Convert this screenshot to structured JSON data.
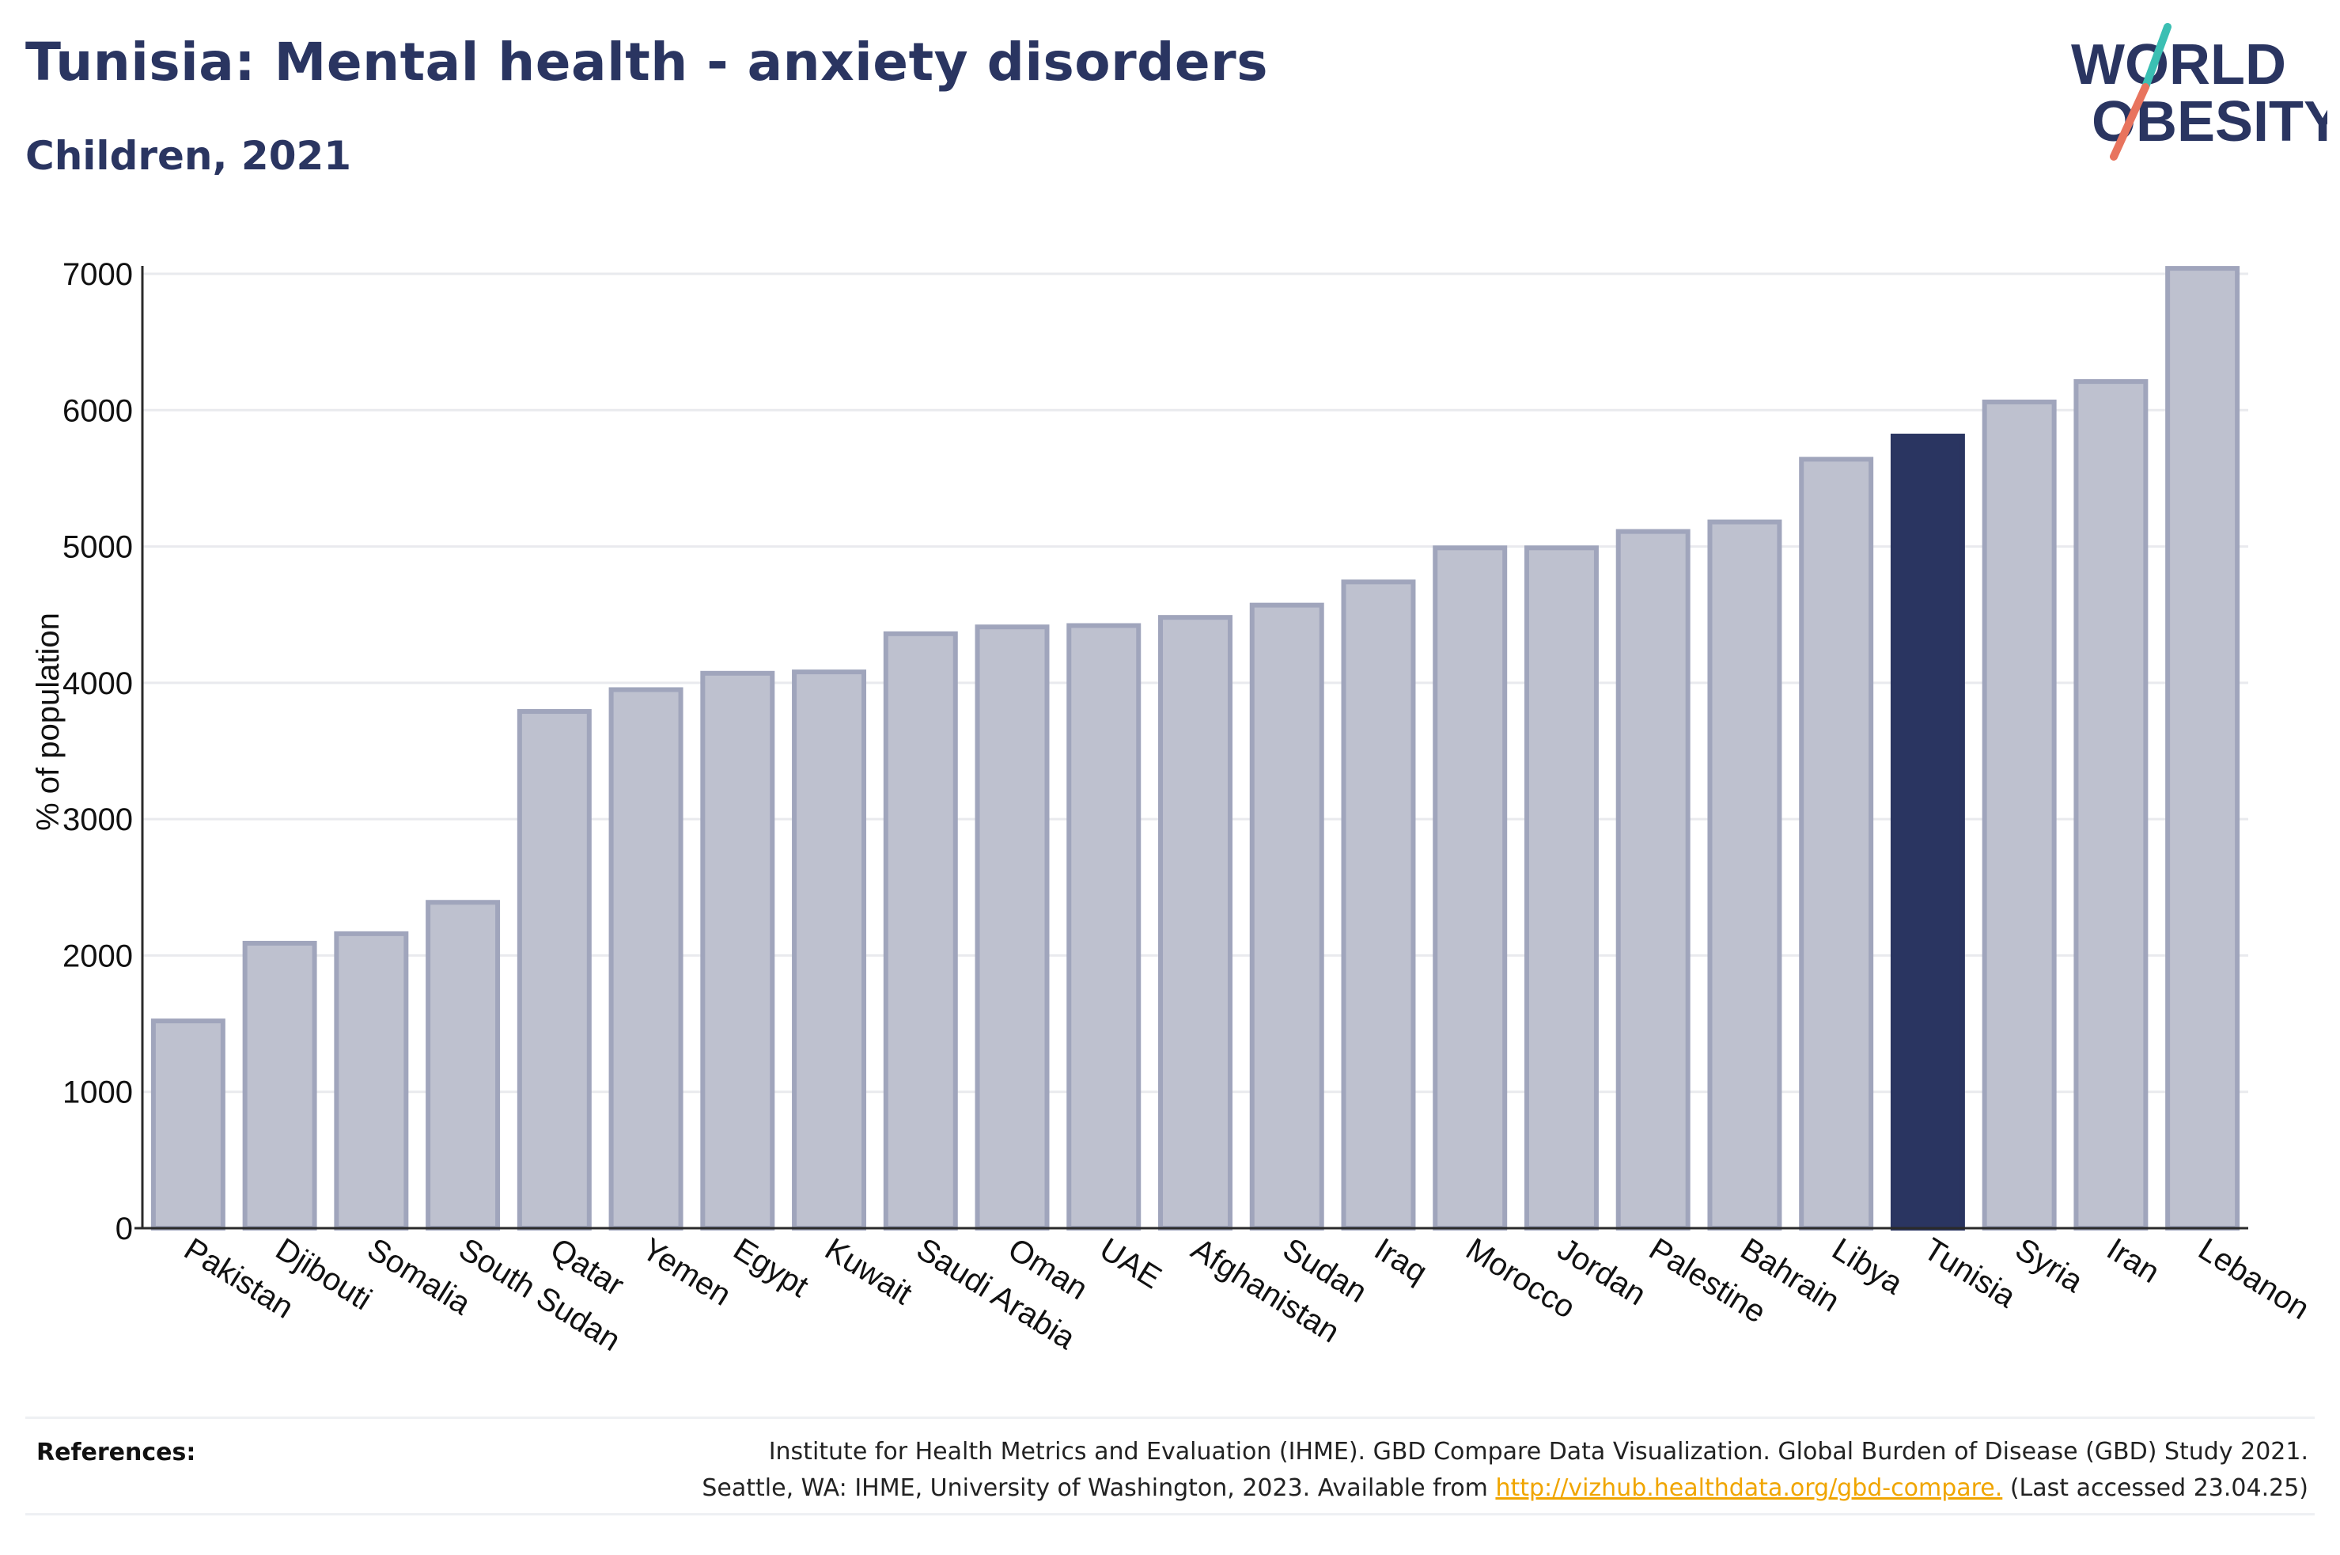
{
  "header": {
    "title": "Tunisia: Mental health - anxiety disorders",
    "subtitle": "Children, 2021"
  },
  "logo": {
    "line1": "WORLD",
    "line2": "OBESITY"
  },
  "colors": {
    "bar_fill": "#bec1cf",
    "bar_stroke": "#a0a5bc",
    "highlight": "#2a3561",
    "grid": "#e9eaee",
    "logo_teal": "#3bbfb3",
    "logo_coral": "#e8745e",
    "link": "#f0a500"
  },
  "chart_data": {
    "type": "bar",
    "title": "Tunisia: Mental health - anxiety disorders",
    "subtitle": "Children, 2021",
    "ylabel": "% of population",
    "xlabel": "",
    "ylim": [
      0,
      7000
    ],
    "yticks": [
      0,
      1000,
      2000,
      3000,
      4000,
      5000,
      6000,
      7000
    ],
    "grid": true,
    "highlight": "Tunisia",
    "categories": [
      "Pakistan",
      "Djibouti",
      "Somalia",
      "South Sudan",
      "Qatar",
      "Yemen",
      "Egypt",
      "Kuwait",
      "Saudi Arabia",
      "Oman",
      "UAE",
      "Afghanistan",
      "Sudan",
      "Iraq",
      "Morocco",
      "Jordan",
      "Palestine",
      "Bahrain",
      "Libya",
      "Tunisia",
      "Syria",
      "Iran",
      "Lebanon"
    ],
    "values": [
      1520,
      2090,
      2160,
      2390,
      3790,
      3950,
      4070,
      4080,
      4360,
      4410,
      4420,
      4480,
      4570,
      4740,
      4990,
      4990,
      5110,
      5180,
      5640,
      5810,
      6060,
      6210,
      7040
    ]
  },
  "references": {
    "label": "References:",
    "line1": "Institute for Health Metrics and Evaluation (IHME). GBD Compare Data Visualization. Global Burden of Disease (GBD) Study 2021.",
    "line2_prefix": "Seattle, WA: IHME, University of Washington, 2023. Available from ",
    "link_text": "http://vizhub.healthdata.org/gbd-compare.",
    "line2_suffix": " (Last accessed 23.04.25)"
  }
}
